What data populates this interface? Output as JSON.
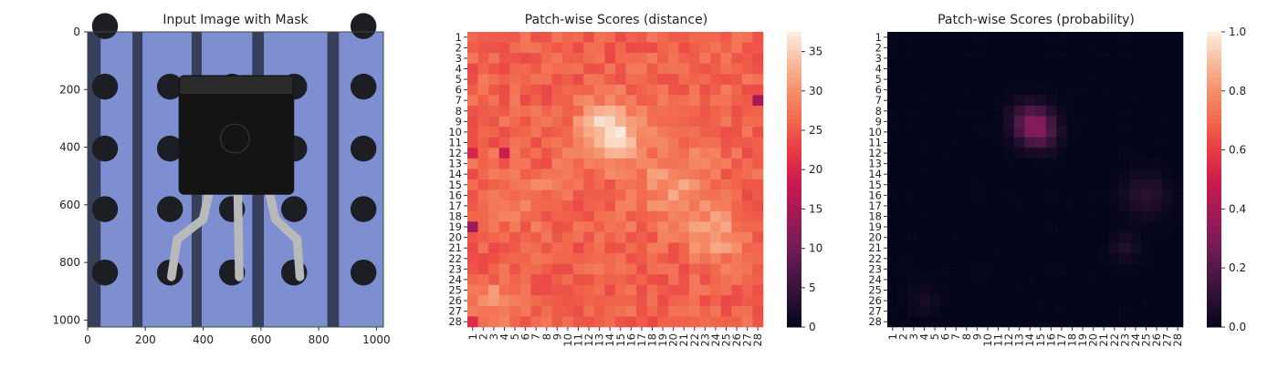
{
  "chart_data": [
    {
      "type": "image",
      "title": "Input Image with Mask",
      "x_ticks": [
        "0",
        "200",
        "400",
        "600",
        "800",
        "1000"
      ],
      "y_ticks": [
        "0",
        "200",
        "400",
        "600",
        "800",
        "1000"
      ],
      "xlim": [
        0,
        1024
      ],
      "ylim": [
        0,
        1024
      ],
      "content": "transistor on perforated board",
      "colors": {
        "board": "#7d8fd0",
        "board_dark": "#5f72b4",
        "stripe": "#2a3345",
        "hole": "#1c1e24",
        "body": "#141414",
        "lead": "#b9b9b9"
      }
    },
    {
      "type": "heatmap",
      "title": "Patch-wise Scores (distance)",
      "rows": 28,
      "cols": 28,
      "vmin": 0,
      "vmax": 37.5,
      "colorbar_ticks": [
        "0",
        "5",
        "10",
        "15",
        "20",
        "25",
        "30",
        "35"
      ],
      "colormap": "rocket",
      "hotspots": [
        {
          "row": 10,
          "col": 14,
          "value": 37,
          "spread": 2.0
        },
        {
          "row": 15,
          "col": 20,
          "value": 31,
          "spread": 2.5
        },
        {
          "row": 20,
          "col": 24,
          "value": 32,
          "spread": 1.8
        },
        {
          "row": 16,
          "col": 6,
          "value": 29,
          "spread": 1.8
        },
        {
          "row": 26,
          "col": 3,
          "value": 31,
          "spread": 1.2
        }
      ],
      "base_value": 26,
      "lows": [
        {
          "row": 19,
          "col": 1,
          "value": 14
        },
        {
          "row": 7,
          "col": 28,
          "value": 15
        },
        {
          "row": 12,
          "col": 4,
          "value": 19
        },
        {
          "row": 12,
          "col": 1,
          "value": 20
        },
        {
          "row": 28,
          "col": 1,
          "value": 21
        }
      ]
    },
    {
      "type": "heatmap",
      "title": "Patch-wise Scores (probability)",
      "rows": 28,
      "cols": 28,
      "vmin": 0,
      "vmax": 1,
      "colorbar_ticks": [
        "0.0",
        "0.2",
        "0.4",
        "0.6",
        "0.8",
        "1.0"
      ],
      "colormap": "rocket",
      "hotspots": [
        {
          "row": 9,
          "col": 14,
          "value": 0.22,
          "spread": 1.3
        },
        {
          "row": 10,
          "col": 15,
          "value": 0.2,
          "spread": 1.2
        },
        {
          "row": 16,
          "col": 25,
          "value": 0.1,
          "spread": 1.5
        },
        {
          "row": 21,
          "col": 23,
          "value": 0.08,
          "spread": 1.0
        },
        {
          "row": 26,
          "col": 4,
          "value": 0.06,
          "spread": 1.0
        }
      ],
      "base_value": 0.0
    }
  ]
}
